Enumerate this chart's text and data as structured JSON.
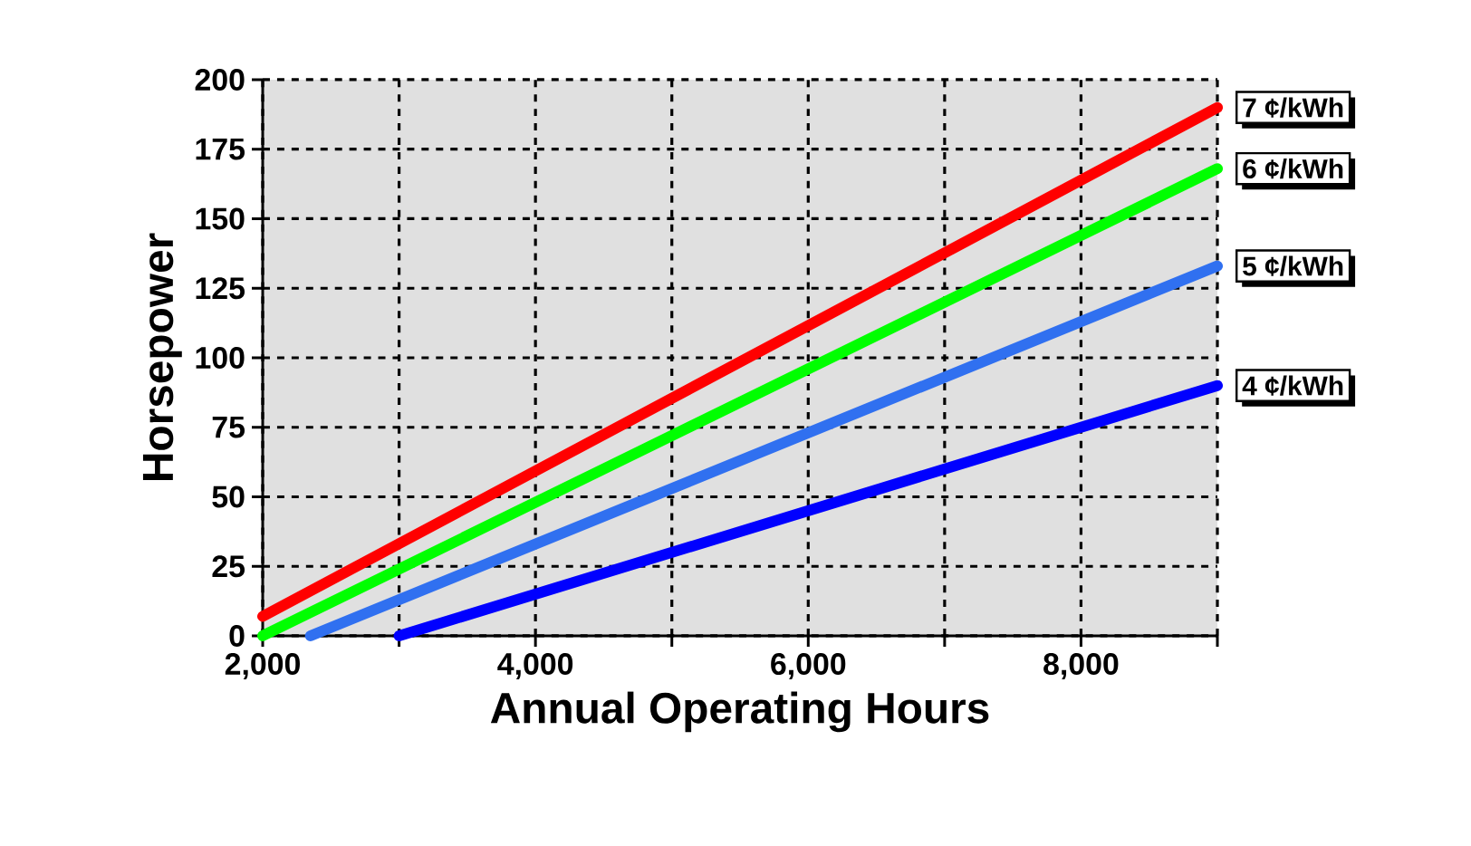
{
  "chart_data": {
    "type": "line",
    "xlabel": "Annual Operating Hours",
    "ylabel": "Horsepower",
    "xlim": [
      2000,
      9000
    ],
    "ylim": [
      0,
      200
    ],
    "xticks": [
      {
        "value": 2000,
        "label": "2,000"
      },
      {
        "value": 3000,
        "label": null
      },
      {
        "value": 4000,
        "label": "4,000"
      },
      {
        "value": 5000,
        "label": null
      },
      {
        "value": 6000,
        "label": "6,000"
      },
      {
        "value": 7000,
        "label": null
      },
      {
        "value": 8000,
        "label": "8,000"
      },
      {
        "value": 9000,
        "label": null
      }
    ],
    "yticks": [
      0,
      25,
      50,
      75,
      100,
      125,
      150,
      175,
      200
    ],
    "grid": true,
    "line_style": "solid",
    "marker": "none",
    "series": [
      {
        "name": "7 ¢/kWh",
        "color": "#ff0000",
        "x": [
          2000,
          9000
        ],
        "values": [
          7,
          190
        ]
      },
      {
        "name": "6 ¢/kWh",
        "color": "#00ff00",
        "x": [
          2000,
          9000
        ],
        "values": [
          0,
          168
        ]
      },
      {
        "name": "5 ¢/kWh",
        "color": "#3070f0",
        "x": [
          2350,
          9000
        ],
        "values": [
          0,
          133
        ]
      },
      {
        "name": "4 ¢/kWh",
        "color": "#0000ff",
        "x": [
          3000,
          9000
        ],
        "values": [
          0,
          90
        ]
      }
    ]
  }
}
